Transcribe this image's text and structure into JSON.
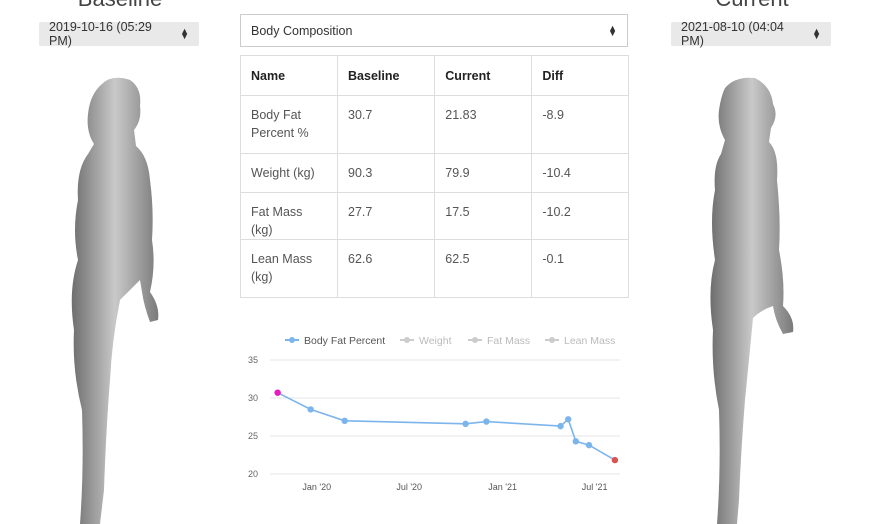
{
  "baseline": {
    "title": "Baseline",
    "date": "2019-10-16 (05:29 PM)"
  },
  "current": {
    "title": "Current",
    "date": "2021-08-10 (04:04 PM)"
  },
  "view_select": {
    "value": "Body Composition"
  },
  "table": {
    "headers": [
      "Name",
      "Baseline",
      "Current",
      "Diff"
    ],
    "rows": [
      [
        "Body Fat Percent %",
        "30.7",
        "21.83",
        "-8.9"
      ],
      [
        "Weight (kg)",
        "90.3",
        "79.9",
        "-10.4"
      ],
      [
        "Fat Mass (kg)",
        "27.7",
        "17.5",
        "-10.2"
      ],
      [
        "Lean Mass (kg)",
        "62.6",
        "62.5",
        "-0.1"
      ]
    ]
  },
  "colors": {
    "line": "#7cb5ec",
    "baseline_point": "#e619c3",
    "current_point": "#d9534f",
    "muted_legend": "#cccccc"
  },
  "chart_data": {
    "type": "line",
    "legend": [
      {
        "name": "Body Fat Percent",
        "active": true
      },
      {
        "name": "Weight",
        "active": false
      },
      {
        "name": "Fat Mass",
        "active": false
      },
      {
        "name": "Lean Mass",
        "active": false
      }
    ],
    "legend_position": "top",
    "x_tick_labels": [
      "Jan '20",
      "Jul '20",
      "Jan '21",
      "Jul '21"
    ],
    "x_ticks": [
      "2020-01-01",
      "2020-07-01",
      "2021-01-01",
      "2021-07-01"
    ],
    "xlim": [
      "2019-10-01",
      "2021-08-20"
    ],
    "ylim": [
      20,
      35
    ],
    "y_ticks": [
      20,
      25,
      30,
      35
    ],
    "grid": true,
    "series": [
      {
        "name": "Body Fat Percent",
        "points": [
          [
            "2019-10-16",
            30.7
          ],
          [
            "2019-12-20",
            28.5
          ],
          [
            "2020-02-25",
            27.0
          ],
          [
            "2020-10-20",
            26.6
          ],
          [
            "2020-11-30",
            26.9
          ],
          [
            "2021-04-25",
            26.3
          ],
          [
            "2021-05-10",
            27.2
          ],
          [
            "2021-05-25",
            24.3
          ],
          [
            "2021-06-20",
            23.8
          ],
          [
            "2021-08-10",
            21.83
          ]
        ]
      }
    ]
  }
}
